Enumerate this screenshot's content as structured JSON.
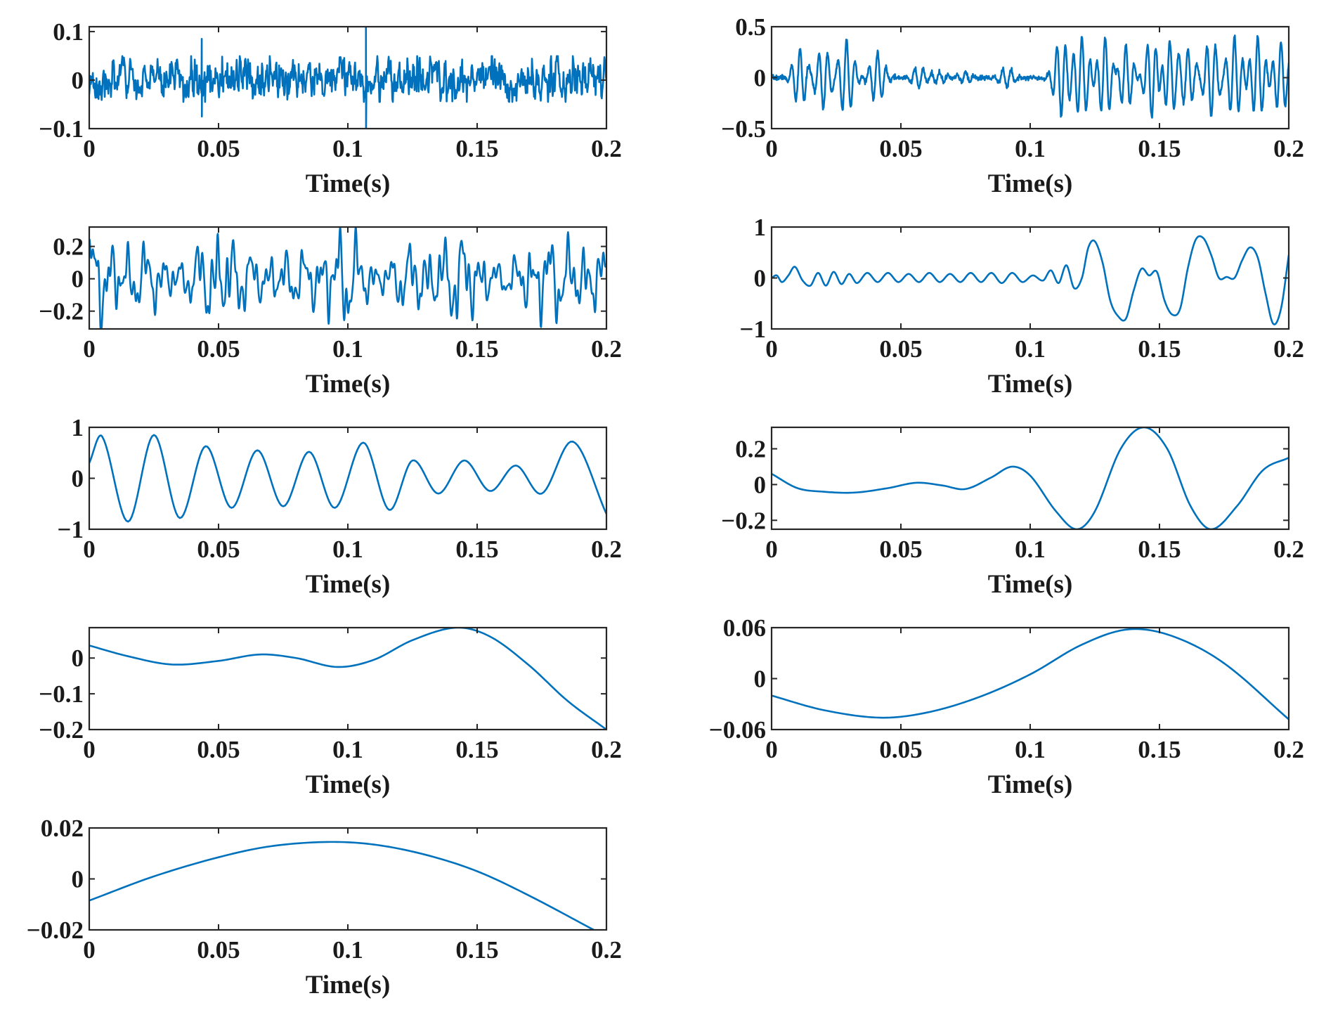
{
  "figure": {
    "line_color": "#0072BD",
    "frame_color": "#262626"
  },
  "chart_data": [
    {
      "id": "panel-1",
      "type": "line",
      "xlabel": "Time(s)",
      "ylabel": "",
      "xlim": [
        0,
        0.2
      ],
      "ylim": [
        -0.1,
        0.11
      ],
      "xticks": [
        0,
        0.05,
        0.1,
        0.15,
        0.2
      ],
      "xtick_labels": [
        "0",
        "0.05",
        "0.1",
        "0.15",
        "0.2"
      ],
      "yticks": [
        0.1,
        0,
        -0.1
      ],
      "ytick_labels": [
        "0.1",
        "0",
        "−0.1"
      ],
      "signal": {
        "kind": "noise",
        "amp": 0.02,
        "samples": 1000,
        "seed": 3,
        "spikes": [
          {
            "t": 0.0435,
            "hi": 0.085,
            "lo": -0.075
          },
          {
            "t": 0.107,
            "hi": 0.11,
            "lo": -0.1
          }
        ]
      }
    },
    {
      "id": "panel-2",
      "type": "line",
      "xlabel": "Time(s)",
      "ylabel": "",
      "xlim": [
        0,
        0.2
      ],
      "ylim": [
        -0.5,
        0.5
      ],
      "xticks": [
        0,
        0.05,
        0.1,
        0.15,
        0.2
      ],
      "xtick_labels": [
        "0",
        "0.05",
        "0.1",
        "0.15",
        "0.2"
      ],
      "yticks": [
        0.5,
        0,
        -0.5
      ],
      "ytick_labels": [
        "0.5",
        "0",
        "−0.5"
      ],
      "signal": {
        "kind": "bursts",
        "freq": 300,
        "width": 0.0035,
        "noise": 0.012,
        "samples": 1400,
        "seed": 7,
        "bursts": [
          [
            0.011,
            0.28
          ],
          [
            0.02,
            -0.3
          ],
          [
            0.029,
            0.38
          ],
          [
            0.041,
            0.25
          ],
          [
            0.057,
            -0.1
          ],
          [
            0.065,
            0.06
          ],
          [
            0.075,
            0.05
          ],
          [
            0.091,
            -0.1
          ],
          [
            0.112,
            -0.38
          ],
          [
            0.12,
            0.4
          ],
          [
            0.129,
            0.4
          ],
          [
            0.137,
            0.32
          ],
          [
            0.147,
            -0.4
          ],
          [
            0.154,
            0.36
          ],
          [
            0.161,
            0.27
          ],
          [
            0.17,
            -0.38
          ],
          [
            0.179,
            0.4
          ],
          [
            0.188,
            0.4
          ],
          [
            0.197,
            0.35
          ]
        ]
      }
    },
    {
      "id": "panel-3",
      "type": "line",
      "xlabel": "Time(s)",
      "ylabel": "",
      "xlim": [
        0,
        0.2
      ],
      "ylim": [
        -0.31,
        0.32
      ],
      "xticks": [
        0,
        0.05,
        0.1,
        0.15,
        0.2
      ],
      "xtick_labels": [
        "0",
        "0.05",
        "0.1",
        "0.15",
        "0.2"
      ],
      "yticks": [
        0.2,
        0,
        -0.2
      ],
      "ytick_labels": [
        "0.2",
        "0",
        "−0.2"
      ],
      "signal": {
        "kind": "multi",
        "samples": 1400,
        "components": [
          [
            0.11,
            147,
            0.3
          ],
          [
            0.07,
            341,
            1.1
          ],
          [
            0.05,
            523,
            2.2
          ],
          [
            0.04,
            97,
            0.7
          ],
          [
            0.02,
            805,
            1.6
          ]
        ],
        "amp_mod": [
          [
            0.35,
            23,
            0.4
          ],
          [
            0.2,
            41,
            1.3
          ]
        ]
      }
    },
    {
      "id": "panel-4",
      "type": "line",
      "xlabel": "Time(s)",
      "ylabel": "",
      "xlim": [
        0,
        0.2
      ],
      "ylim": [
        -1,
        1
      ],
      "xticks": [
        0,
        0.05,
        0.1,
        0.15,
        0.2
      ],
      "xtick_labels": [
        "0",
        "0.05",
        "0.1",
        "0.15",
        "0.2"
      ],
      "yticks": [
        1,
        0,
        -1
      ],
      "ytick_labels": [
        "1",
        "0",
        "−1"
      ],
      "points": [
        [
          0,
          0
        ],
        [
          0.002,
          0.05
        ],
        [
          0.004,
          -0.08
        ],
        [
          0.0065,
          0.05
        ],
        [
          0.009,
          0.22
        ],
        [
          0.012,
          -0.05
        ],
        [
          0.015,
          -0.15
        ],
        [
          0.018,
          0.1
        ],
        [
          0.021,
          -0.15
        ],
        [
          0.024,
          0.12
        ],
        [
          0.027,
          -0.12
        ],
        [
          0.03,
          0.08
        ],
        [
          0.033,
          -0.1
        ],
        [
          0.037,
          0.1
        ],
        [
          0.041,
          -0.08
        ],
        [
          0.045,
          0.1
        ],
        [
          0.049,
          -0.08
        ],
        [
          0.053,
          0.08
        ],
        [
          0.057,
          -0.08
        ],
        [
          0.061,
          0.1
        ],
        [
          0.065,
          -0.08
        ],
        [
          0.069,
          0.08
        ],
        [
          0.073,
          -0.08
        ],
        [
          0.077,
          0.1
        ],
        [
          0.081,
          -0.08
        ],
        [
          0.085,
          0.1
        ],
        [
          0.089,
          -0.1
        ],
        [
          0.093,
          0.1
        ],
        [
          0.097,
          -0.08
        ],
        [
          0.101,
          0.05
        ],
        [
          0.105,
          -0.05
        ],
        [
          0.108,
          0.15
        ],
        [
          0.111,
          -0.1
        ],
        [
          0.114,
          0.25
        ],
        [
          0.117,
          -0.2
        ],
        [
          0.12,
          0.0
        ],
        [
          0.1225,
          0.6
        ],
        [
          0.125,
          0.72
        ],
        [
          0.128,
          0.3
        ],
        [
          0.131,
          -0.45
        ],
        [
          0.134,
          -0.75
        ],
        [
          0.137,
          -0.8
        ],
        [
          0.14,
          -0.25
        ],
        [
          0.143,
          0.18
        ],
        [
          0.146,
          0.05
        ],
        [
          0.149,
          0.12
        ],
        [
          0.152,
          -0.45
        ],
        [
          0.155,
          -0.72
        ],
        [
          0.158,
          -0.6
        ],
        [
          0.161,
          0.2
        ],
        [
          0.164,
          0.75
        ],
        [
          0.167,
          0.78
        ],
        [
          0.17,
          0.45
        ],
        [
          0.173,
          0.0
        ],
        [
          0.176,
          0.02
        ],
        [
          0.179,
          0.0
        ],
        [
          0.182,
          0.35
        ],
        [
          0.185,
          0.6
        ],
        [
          0.188,
          0.4
        ],
        [
          0.191,
          -0.3
        ],
        [
          0.194,
          -0.9
        ],
        [
          0.197,
          -0.6
        ],
        [
          0.2,
          0.45
        ]
      ]
    },
    {
      "id": "panel-5",
      "type": "line",
      "xlabel": "Time(s)",
      "ylabel": "",
      "xlim": [
        0,
        0.2
      ],
      "ylim": [
        -1,
        1
      ],
      "xticks": [
        0,
        0.05,
        0.1,
        0.15,
        0.2
      ],
      "xtick_labels": [
        "0",
        "0.05",
        "0.1",
        "0.15",
        "0.2"
      ],
      "yticks": [
        1,
        0,
        -1
      ],
      "ytick_labels": [
        "1",
        "0",
        "−1"
      ],
      "points": [
        [
          0,
          0.3
        ],
        [
          0.005,
          0.82
        ],
        [
          0.015,
          -0.85
        ],
        [
          0.025,
          0.85
        ],
        [
          0.035,
          -0.78
        ],
        [
          0.045,
          0.63
        ],
        [
          0.055,
          -0.58
        ],
        [
          0.065,
          0.55
        ],
        [
          0.075,
          -0.55
        ],
        [
          0.085,
          0.52
        ],
        [
          0.095,
          -0.58
        ],
        [
          0.106,
          0.7
        ],
        [
          0.116,
          -0.62
        ],
        [
          0.125,
          0.35
        ],
        [
          0.135,
          -0.3
        ],
        [
          0.145,
          0.35
        ],
        [
          0.155,
          -0.25
        ],
        [
          0.165,
          0.25
        ],
        [
          0.175,
          -0.3
        ],
        [
          0.187,
          0.72
        ],
        [
          0.2,
          -0.7
        ]
      ]
    },
    {
      "id": "panel-6",
      "type": "line",
      "xlabel": "Time(s)",
      "ylabel": "",
      "xlim": [
        0,
        0.2
      ],
      "ylim": [
        -0.25,
        0.32
      ],
      "xticks": [
        0,
        0.05,
        0.1,
        0.15,
        0.2
      ],
      "xtick_labels": [
        "0",
        "0.05",
        "0.1",
        "0.15",
        "0.2"
      ],
      "yticks": [
        0.2,
        0,
        -0.2
      ],
      "ytick_labels": [
        "0.2",
        "0",
        "−0.2"
      ],
      "points": [
        [
          0,
          0.06
        ],
        [
          0.01,
          -0.02
        ],
        [
          0.02,
          -0.04
        ],
        [
          0.032,
          -0.045
        ],
        [
          0.045,
          -0.02
        ],
        [
          0.056,
          0.01
        ],
        [
          0.066,
          -0.005
        ],
        [
          0.075,
          -0.025
        ],
        [
          0.085,
          0.04
        ],
        [
          0.093,
          0.1
        ],
        [
          0.1,
          0.05
        ],
        [
          0.11,
          -0.15
        ],
        [
          0.118,
          -0.25
        ],
        [
          0.125,
          -0.15
        ],
        [
          0.135,
          0.2
        ],
        [
          0.144,
          0.32
        ],
        [
          0.153,
          0.2
        ],
        [
          0.162,
          -0.12
        ],
        [
          0.17,
          -0.25
        ],
        [
          0.18,
          -0.12
        ],
        [
          0.19,
          0.08
        ],
        [
          0.2,
          0.15
        ]
      ]
    },
    {
      "id": "panel-7",
      "type": "line",
      "xlabel": "Time(s)",
      "ylabel": "",
      "xlim": [
        0,
        0.2
      ],
      "ylim": [
        -0.2,
        0.085
      ],
      "xticks": [
        0,
        0.05,
        0.1,
        0.15,
        0.2
      ],
      "xtick_labels": [
        "0",
        "0.05",
        "0.1",
        "0.15",
        "0.2"
      ],
      "yticks": [
        0,
        -0.1,
        -0.2
      ],
      "ytick_labels": [
        "0",
        "−0.1",
        "−0.2"
      ],
      "points": [
        [
          0,
          0.035
        ],
        [
          0.015,
          0.005
        ],
        [
          0.032,
          -0.018
        ],
        [
          0.05,
          -0.008
        ],
        [
          0.066,
          0.01
        ],
        [
          0.08,
          0.0
        ],
        [
          0.096,
          -0.025
        ],
        [
          0.11,
          -0.005
        ],
        [
          0.125,
          0.05
        ],
        [
          0.142,
          0.085
        ],
        [
          0.155,
          0.06
        ],
        [
          0.17,
          -0.02
        ],
        [
          0.185,
          -0.12
        ],
        [
          0.2,
          -0.2
        ]
      ]
    },
    {
      "id": "panel-8",
      "type": "line",
      "xlabel": "Time(s)",
      "ylabel": "",
      "xlim": [
        0,
        0.2
      ],
      "ylim": [
        -0.06,
        0.06
      ],
      "xticks": [
        0,
        0.05,
        0.1,
        0.15,
        0.2
      ],
      "xtick_labels": [
        "0",
        "0.05",
        "0.1",
        "0.15",
        "0.2"
      ],
      "yticks": [
        0.06,
        0,
        -0.06
      ],
      "ytick_labels": [
        "0.06",
        "0",
        "−0.06"
      ],
      "points": [
        [
          0,
          -0.02
        ],
        [
          0.02,
          -0.037
        ],
        [
          0.042,
          -0.046
        ],
        [
          0.06,
          -0.04
        ],
        [
          0.08,
          -0.022
        ],
        [
          0.1,
          0.005
        ],
        [
          0.12,
          0.04
        ],
        [
          0.138,
          0.058
        ],
        [
          0.155,
          0.05
        ],
        [
          0.175,
          0.018
        ],
        [
          0.2,
          -0.048
        ]
      ]
    },
    {
      "id": "panel-9",
      "type": "line",
      "xlabel": "Time(s)",
      "ylabel": "",
      "xlim": [
        0,
        0.2
      ],
      "ylim": [
        -0.02,
        0.02
      ],
      "xticks": [
        0,
        0.05,
        0.1,
        0.15,
        0.2
      ],
      "xtick_labels": [
        "0",
        "0.05",
        "0.1",
        "0.15",
        "0.2"
      ],
      "yticks": [
        0.02,
        0,
        -0.02
      ],
      "ytick_labels": [
        "0.02",
        "0",
        "−0.02"
      ],
      "points": [
        [
          0,
          -0.0085
        ],
        [
          0.025,
          0.001
        ],
        [
          0.05,
          0.0085
        ],
        [
          0.07,
          0.0128
        ],
        [
          0.092,
          0.0145
        ],
        [
          0.11,
          0.0135
        ],
        [
          0.13,
          0.0095
        ],
        [
          0.15,
          0.003
        ],
        [
          0.17,
          -0.0065
        ],
        [
          0.196,
          -0.0205
        ]
      ]
    }
  ]
}
